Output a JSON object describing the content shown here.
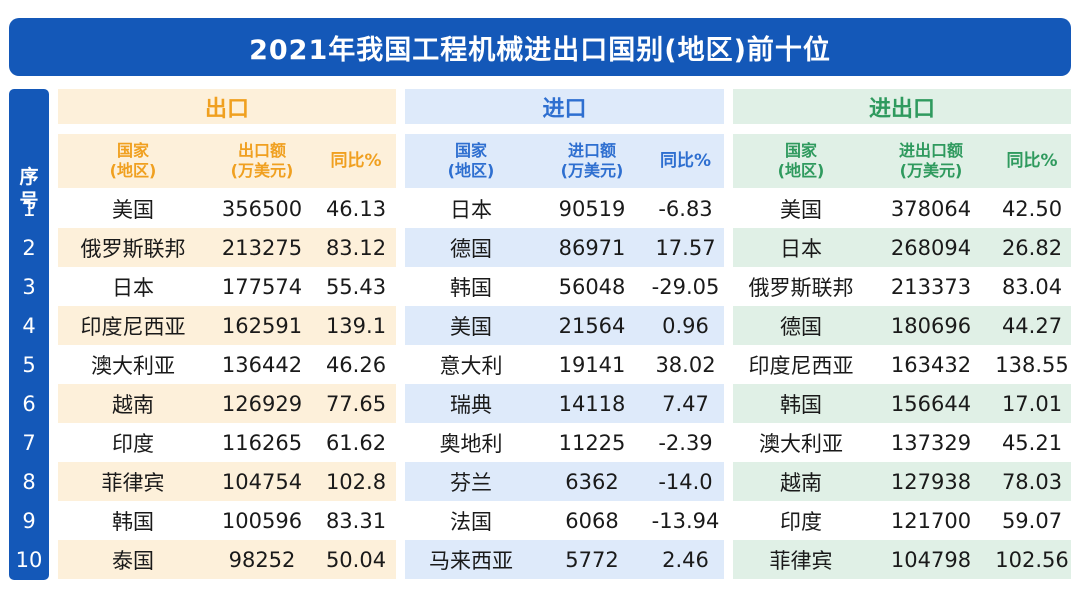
{
  "title": "2021年我国工程机械进出口国别(地区)前十位",
  "index_header": [
    "序",
    "号"
  ],
  "index_numbers": [
    "1",
    "2",
    "3",
    "4",
    "5",
    "6",
    "7",
    "8",
    "9",
    "10"
  ],
  "colors": {
    "title_bg": "#1458b8",
    "export_accent": "#f0a020",
    "export_band": "#fdf0da",
    "import_accent": "#2e6fd0",
    "import_band": "#deeafa",
    "total_accent": "#2f9a5e",
    "total_band": "#e0f0e6"
  },
  "sections": [
    {
      "key": "export",
      "title": "出口",
      "headers": {
        "country": [
          "国家",
          "(地区)"
        ],
        "amount": [
          "出口额",
          "(万美元)"
        ],
        "yoy": "同比%"
      },
      "rows": [
        {
          "country": "美国",
          "amount": "356500",
          "yoy": "46.13"
        },
        {
          "country": "俄罗斯联邦",
          "amount": "213275",
          "yoy": "83.12"
        },
        {
          "country": "日本",
          "amount": "177574",
          "yoy": "55.43"
        },
        {
          "country": "印度尼西亚",
          "amount": "162591",
          "yoy": "139.1"
        },
        {
          "country": "澳大利亚",
          "amount": "136442",
          "yoy": "46.26"
        },
        {
          "country": "越南",
          "amount": "126929",
          "yoy": "77.65"
        },
        {
          "country": "印度",
          "amount": "116265",
          "yoy": "61.62"
        },
        {
          "country": "菲律宾",
          "amount": "104754",
          "yoy": "102.8"
        },
        {
          "country": "韩国",
          "amount": "100596",
          "yoy": "83.31"
        },
        {
          "country": "泰国",
          "amount": "98252",
          "yoy": "50.04"
        }
      ]
    },
    {
      "key": "import",
      "title": "进口",
      "headers": {
        "country": [
          "国家",
          "(地区)"
        ],
        "amount": [
          "进口额",
          "(万美元)"
        ],
        "yoy": "同比%"
      },
      "rows": [
        {
          "country": "日本",
          "amount": "90519",
          "yoy": "-6.83"
        },
        {
          "country": "德国",
          "amount": "86971",
          "yoy": "17.57"
        },
        {
          "country": "韩国",
          "amount": "56048",
          "yoy": "-29.05"
        },
        {
          "country": "美国",
          "amount": "21564",
          "yoy": "0.96"
        },
        {
          "country": "意大利",
          "amount": "19141",
          "yoy": "38.02"
        },
        {
          "country": "瑞典",
          "amount": "14118",
          "yoy": "7.47"
        },
        {
          "country": "奥地利",
          "amount": "11225",
          "yoy": "-2.39"
        },
        {
          "country": "芬兰",
          "amount": "6362",
          "yoy": "-14.0"
        },
        {
          "country": "法国",
          "amount": "6068",
          "yoy": "-13.94"
        },
        {
          "country": "马来西亚",
          "amount": "5772",
          "yoy": "2.46"
        }
      ]
    },
    {
      "key": "total",
      "title": "进出口",
      "headers": {
        "country": [
          "国家",
          "(地区)"
        ],
        "amount": [
          "进出口额",
          "(万美元)"
        ],
        "yoy": "同比%"
      },
      "rows": [
        {
          "country": "美国",
          "amount": "378064",
          "yoy": "42.50"
        },
        {
          "country": "日本",
          "amount": "268094",
          "yoy": "26.82"
        },
        {
          "country": "俄罗斯联邦",
          "amount": "213373",
          "yoy": "83.04"
        },
        {
          "country": "德国",
          "amount": "180696",
          "yoy": "44.27"
        },
        {
          "country": "印度尼西亚",
          "amount": "163432",
          "yoy": "138.55"
        },
        {
          "country": "韩国",
          "amount": "156644",
          "yoy": "17.01"
        },
        {
          "country": "澳大利亚",
          "amount": "137329",
          "yoy": "45.21"
        },
        {
          "country": "越南",
          "amount": "127938",
          "yoy": "78.03"
        },
        {
          "country": "印度",
          "amount": "121700",
          "yoy": "59.07"
        },
        {
          "country": "菲律宾",
          "amount": "104798",
          "yoy": "102.56"
        }
      ]
    }
  ]
}
